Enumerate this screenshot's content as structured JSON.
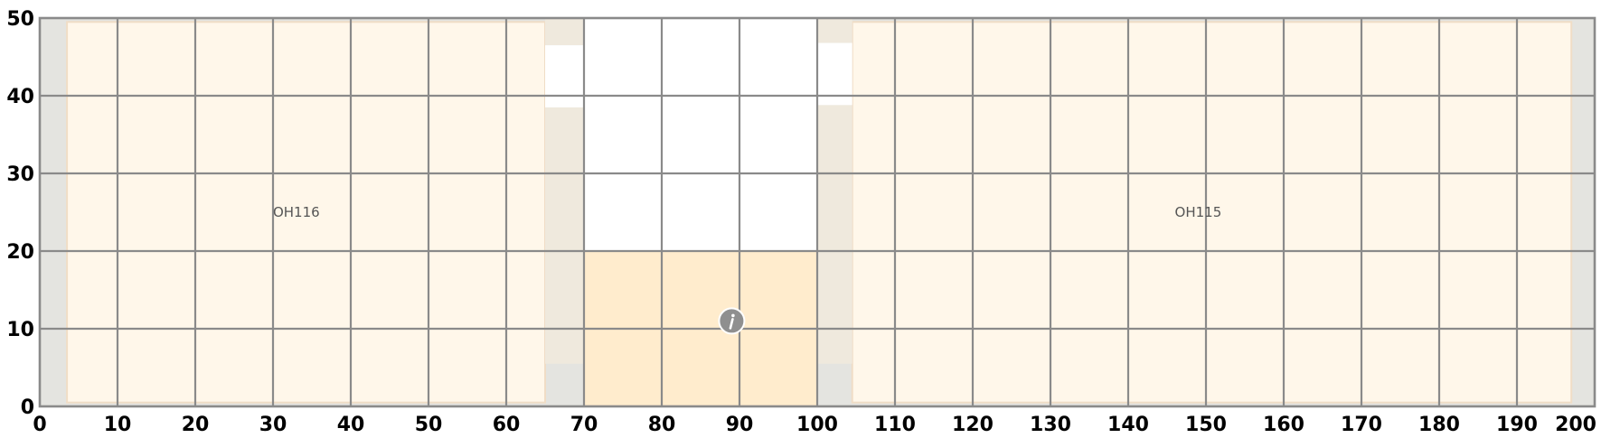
{
  "plan": {
    "x_range": [
      0,
      200
    ],
    "y_range": [
      0,
      50
    ],
    "x_ticks": [
      0,
      10,
      20,
      30,
      40,
      50,
      60,
      70,
      80,
      90,
      100,
      110,
      120,
      130,
      140,
      150,
      160,
      170,
      180,
      190,
      200
    ],
    "y_ticks": [
      0,
      10,
      20,
      30,
      40,
      50
    ],
    "grid": true,
    "colors": {
      "background": "#e4e4e0",
      "room_fill": "#fff7ea",
      "room_border": "#f0ddc6",
      "wall_fill": "#efe9dd",
      "selected_fill": "#ffeccd",
      "grid": "#8a8a8a",
      "icon_fill": "#8f8f8f"
    },
    "rooms": [
      {
        "name": "OH116",
        "x0": 3.5,
        "x1": 65,
        "y0": 0.5,
        "y1": 49.5,
        "label_x": 33,
        "label_y": 25
      },
      {
        "name": "OH115",
        "x0": 104.5,
        "x1": 197,
        "y0": 0.5,
        "y1": 49.5,
        "label_x": 149,
        "label_y": 25
      }
    ],
    "walls": [
      {
        "x0": 65,
        "x1": 70,
        "y0": 46.5,
        "y1": 50
      },
      {
        "x0": 65,
        "x1": 70,
        "y0": 5.5,
        "y1": 38.5
      },
      {
        "x0": 100,
        "x1": 104.5,
        "y0": 46.8,
        "y1": 50
      },
      {
        "x0": 100,
        "x1": 104.5,
        "y0": 5.5,
        "y1": 38.8
      }
    ],
    "open_areas": [
      {
        "x0": 70,
        "x1": 100,
        "y0": 20,
        "y1": 50
      },
      {
        "x0": 65,
        "x1": 70,
        "y0": 38.5,
        "y1": 46.5
      },
      {
        "x0": 100,
        "x1": 104.5,
        "y0": 38.8,
        "y1": 46.8
      }
    ],
    "selected_area": {
      "x0": 70,
      "x1": 100,
      "y0": 0,
      "y1": 20
    },
    "info_marker": {
      "x": 89,
      "y": 11,
      "icon": "info-icon"
    }
  }
}
